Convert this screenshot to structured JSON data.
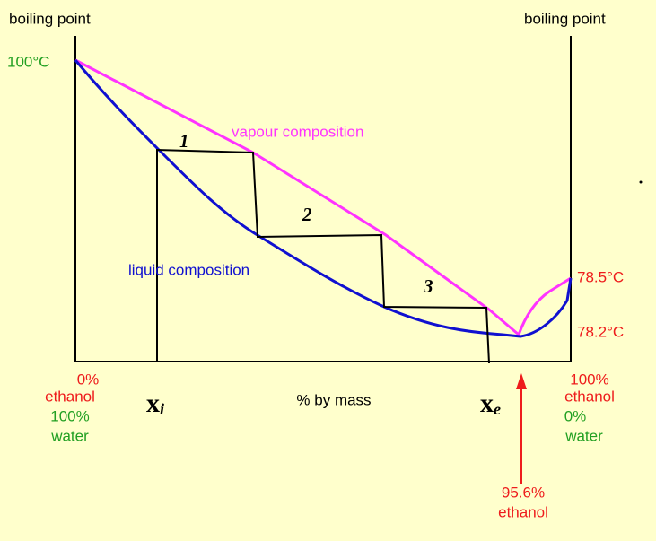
{
  "axis_labels": {
    "left": "boiling point",
    "right": "boiling point",
    "x": "% by mass"
  },
  "temperatures": {
    "water": "100°C",
    "ethanol": "78.5°C",
    "azeotrope": "78.2°C"
  },
  "curves": {
    "vapour": "vapour composition",
    "liquid": "liquid composition"
  },
  "steps": [
    "1",
    "2",
    "3"
  ],
  "left_end": {
    "ethanol": [
      "0%",
      "ethanol"
    ],
    "water": [
      "100%",
      "water"
    ]
  },
  "right_end": {
    "ethanol": [
      "100%",
      "ethanol"
    ],
    "water": [
      "0%",
      "water"
    ]
  },
  "markers": {
    "xi": {
      "base": "x",
      "sub": "i"
    },
    "xe": {
      "base": "x",
      "sub": "e"
    }
  },
  "azeotrope_label": [
    "95.6%",
    "ethanol"
  ]
}
